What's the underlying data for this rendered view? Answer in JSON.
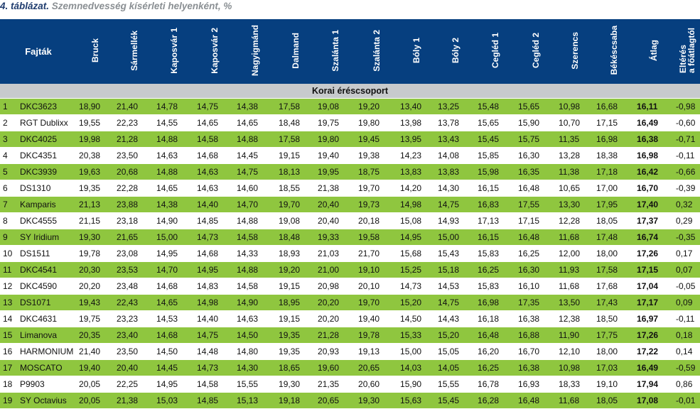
{
  "caption": {
    "number": "4. táblázat.",
    "title": "Szemnedvesség kísérleti helyenként, %"
  },
  "table": {
    "first_header": "Fajták",
    "columns": [
      "Bruck",
      "Sármellék",
      "Kaposvár 1",
      "Kaposvár 2",
      "Nagyigmánd",
      "Dalmand",
      "Szalánta 1",
      "Szalánta 2",
      "Bóly 1",
      "Bóly 2",
      "Cegléd 1",
      "Cegléd 2",
      "Szerencs",
      "Békéscsaba",
      "Átlag",
      "Eltérés\na főátlagtól"
    ],
    "group_label": "Korai éréscsoport",
    "rows": [
      {
        "idx": "1",
        "name": "DKC3623",
        "values": [
          "18,90",
          "21,40",
          "14,78",
          "14,75",
          "14,38",
          "17,58",
          "19,08",
          "19,20",
          "13,40",
          "13,25",
          "15,48",
          "15,65",
          "10,98",
          "16,68",
          "16,11",
          "-0,98"
        ]
      },
      {
        "idx": "2",
        "name": "RGT Dublixx",
        "values": [
          "19,55",
          "22,23",
          "14,55",
          "14,65",
          "14,65",
          "18,48",
          "19,75",
          "19,80",
          "13,98",
          "13,78",
          "15,65",
          "15,90",
          "10,70",
          "17,15",
          "16,49",
          "-0,60"
        ]
      },
      {
        "idx": "3",
        "name": "DKC4025",
        "values": [
          "19,98",
          "21,28",
          "14,88",
          "14,58",
          "14,88",
          "17,58",
          "19,80",
          "19,45",
          "13,95",
          "13,43",
          "15,45",
          "15,75",
          "11,35",
          "16,98",
          "16,38",
          "-0,71"
        ]
      },
      {
        "idx": "4",
        "name": "DKC4351",
        "values": [
          "20,38",
          "23,50",
          "14,63",
          "14,68",
          "14,45",
          "19,15",
          "19,40",
          "19,38",
          "14,23",
          "14,08",
          "15,85",
          "16,30",
          "13,28",
          "18,38",
          "16,98",
          "-0,11"
        ]
      },
      {
        "idx": "5",
        "name": "DKC3939",
        "values": [
          "19,63",
          "20,68",
          "14,88",
          "14,63",
          "14,75",
          "18,13",
          "19,95",
          "18,75",
          "13,83",
          "13,83",
          "15,98",
          "16,35",
          "11,38",
          "17,18",
          "16,42",
          "-0,66"
        ]
      },
      {
        "idx": "6",
        "name": "DS1310",
        "values": [
          "19,35",
          "22,28",
          "14,65",
          "14,63",
          "14,60",
          "18,55",
          "21,38",
          "19,70",
          "14,20",
          "14,30",
          "16,15",
          "16,48",
          "10,65",
          "17,00",
          "16,70",
          "-0,39"
        ]
      },
      {
        "idx": "7",
        "name": "Kamparis",
        "values": [
          "21,13",
          "23,88",
          "14,38",
          "14,40",
          "14,70",
          "19,70",
          "20,40",
          "19,73",
          "14,98",
          "14,75",
          "16,83",
          "17,55",
          "13,30",
          "17,95",
          "17,40",
          "0,32"
        ]
      },
      {
        "idx": "8",
        "name": "DKC4555",
        "values": [
          "21,15",
          "23,18",
          "14,90",
          "14,85",
          "14,88",
          "19,08",
          "20,40",
          "20,18",
          "15,08",
          "14,93",
          "17,13",
          "17,15",
          "12,28",
          "18,05",
          "17,37",
          "0,29"
        ]
      },
      {
        "idx": "9",
        "name": "SY Iridium",
        "values": [
          "19,30",
          "21,65",
          "15,00",
          "14,73",
          "14,58",
          "18,48",
          "19,33",
          "19,58",
          "14,95",
          "15,00",
          "16,15",
          "16,48",
          "11,68",
          "17,48",
          "16,74",
          "-0,35"
        ]
      },
      {
        "idx": "10",
        "name": "DS1511",
        "values": [
          "19,78",
          "23,08",
          "14,95",
          "14,68",
          "14,33",
          "18,93",
          "21,03",
          "21,70",
          "15,68",
          "15,43",
          "15,83",
          "16,25",
          "12,00",
          "18,00",
          "17,26",
          "0,17"
        ]
      },
      {
        "idx": "11",
        "name": "DKC4541",
        "values": [
          "20,30",
          "23,53",
          "14,70",
          "14,95",
          "14,88",
          "19,20",
          "21,00",
          "19,10",
          "15,25",
          "15,18",
          "16,25",
          "16,30",
          "11,93",
          "17,58",
          "17,15",
          "0,07"
        ]
      },
      {
        "idx": "12",
        "name": "DKC4590",
        "values": [
          "20,20",
          "23,48",
          "14,68",
          "14,83",
          "14,58",
          "19,15",
          "20,98",
          "20,10",
          "14,73",
          "14,53",
          "15,83",
          "16,10",
          "11,68",
          "17,68",
          "17,04",
          "-0,05"
        ]
      },
      {
        "idx": "13",
        "name": "DS1071",
        "values": [
          "19,43",
          "22,43",
          "14,65",
          "14,98",
          "14,90",
          "18,95",
          "20,20",
          "19,70",
          "15,20",
          "14,75",
          "16,98",
          "17,35",
          "13,50",
          "17,43",
          "17,17",
          "0,09"
        ]
      },
      {
        "idx": "14",
        "name": "DKC4631",
        "values": [
          "19,75",
          "23,23",
          "14,53",
          "14,40",
          "14,63",
          "19,15",
          "20,20",
          "19,40",
          "14,50",
          "14,43",
          "16,18",
          "16,38",
          "12,38",
          "18,50",
          "16,97",
          "-0,11"
        ]
      },
      {
        "idx": "15",
        "name": "Limanova",
        "values": [
          "20,35",
          "23,40",
          "14,68",
          "14,75",
          "14,50",
          "19,35",
          "21,28",
          "19,78",
          "15,33",
          "15,20",
          "16,48",
          "16,88",
          "11,90",
          "17,75",
          "17,26",
          "0,18"
        ]
      },
      {
        "idx": "16",
        "name": "HARMONIUM",
        "values": [
          "21,40",
          "23,50",
          "14,50",
          "14,48",
          "14,80",
          "19,35",
          "20,93",
          "19,13",
          "15,00",
          "15,05",
          "16,20",
          "16,70",
          "12,10",
          "18,00",
          "17,22",
          "0,14"
        ]
      },
      {
        "idx": "17",
        "name": "MOSCATO",
        "values": [
          "19,40",
          "20,40",
          "14,45",
          "14,73",
          "14,30",
          "18,65",
          "19,60",
          "20,65",
          "14,03",
          "14,05",
          "16,25",
          "16,38",
          "10,98",
          "17,03",
          "16,49",
          "-0,59"
        ]
      },
      {
        "idx": "18",
        "name": "P9903",
        "values": [
          "20,05",
          "22,25",
          "14,95",
          "14,58",
          "15,55",
          "19,30",
          "21,35",
          "20,60",
          "15,90",
          "15,55",
          "16,78",
          "16,93",
          "18,33",
          "19,10",
          "17,94",
          "0,86"
        ]
      },
      {
        "idx": "19",
        "name": "SY Octavius",
        "values": [
          "20,05",
          "21,38",
          "15,03",
          "14,85",
          "15,13",
          "19,18",
          "20,65",
          "19,30",
          "15,63",
          "15,45",
          "16,28",
          "16,48",
          "11,68",
          "18,05",
          "17,08",
          "-0,01"
        ]
      }
    ]
  },
  "colors": {
    "header_bg": "#063f7f",
    "group_bg": "#c7cacc",
    "stripe_green": "#8fc63f",
    "caption_number": "#1f3c6e",
    "caption_title": "#8a8f93"
  }
}
